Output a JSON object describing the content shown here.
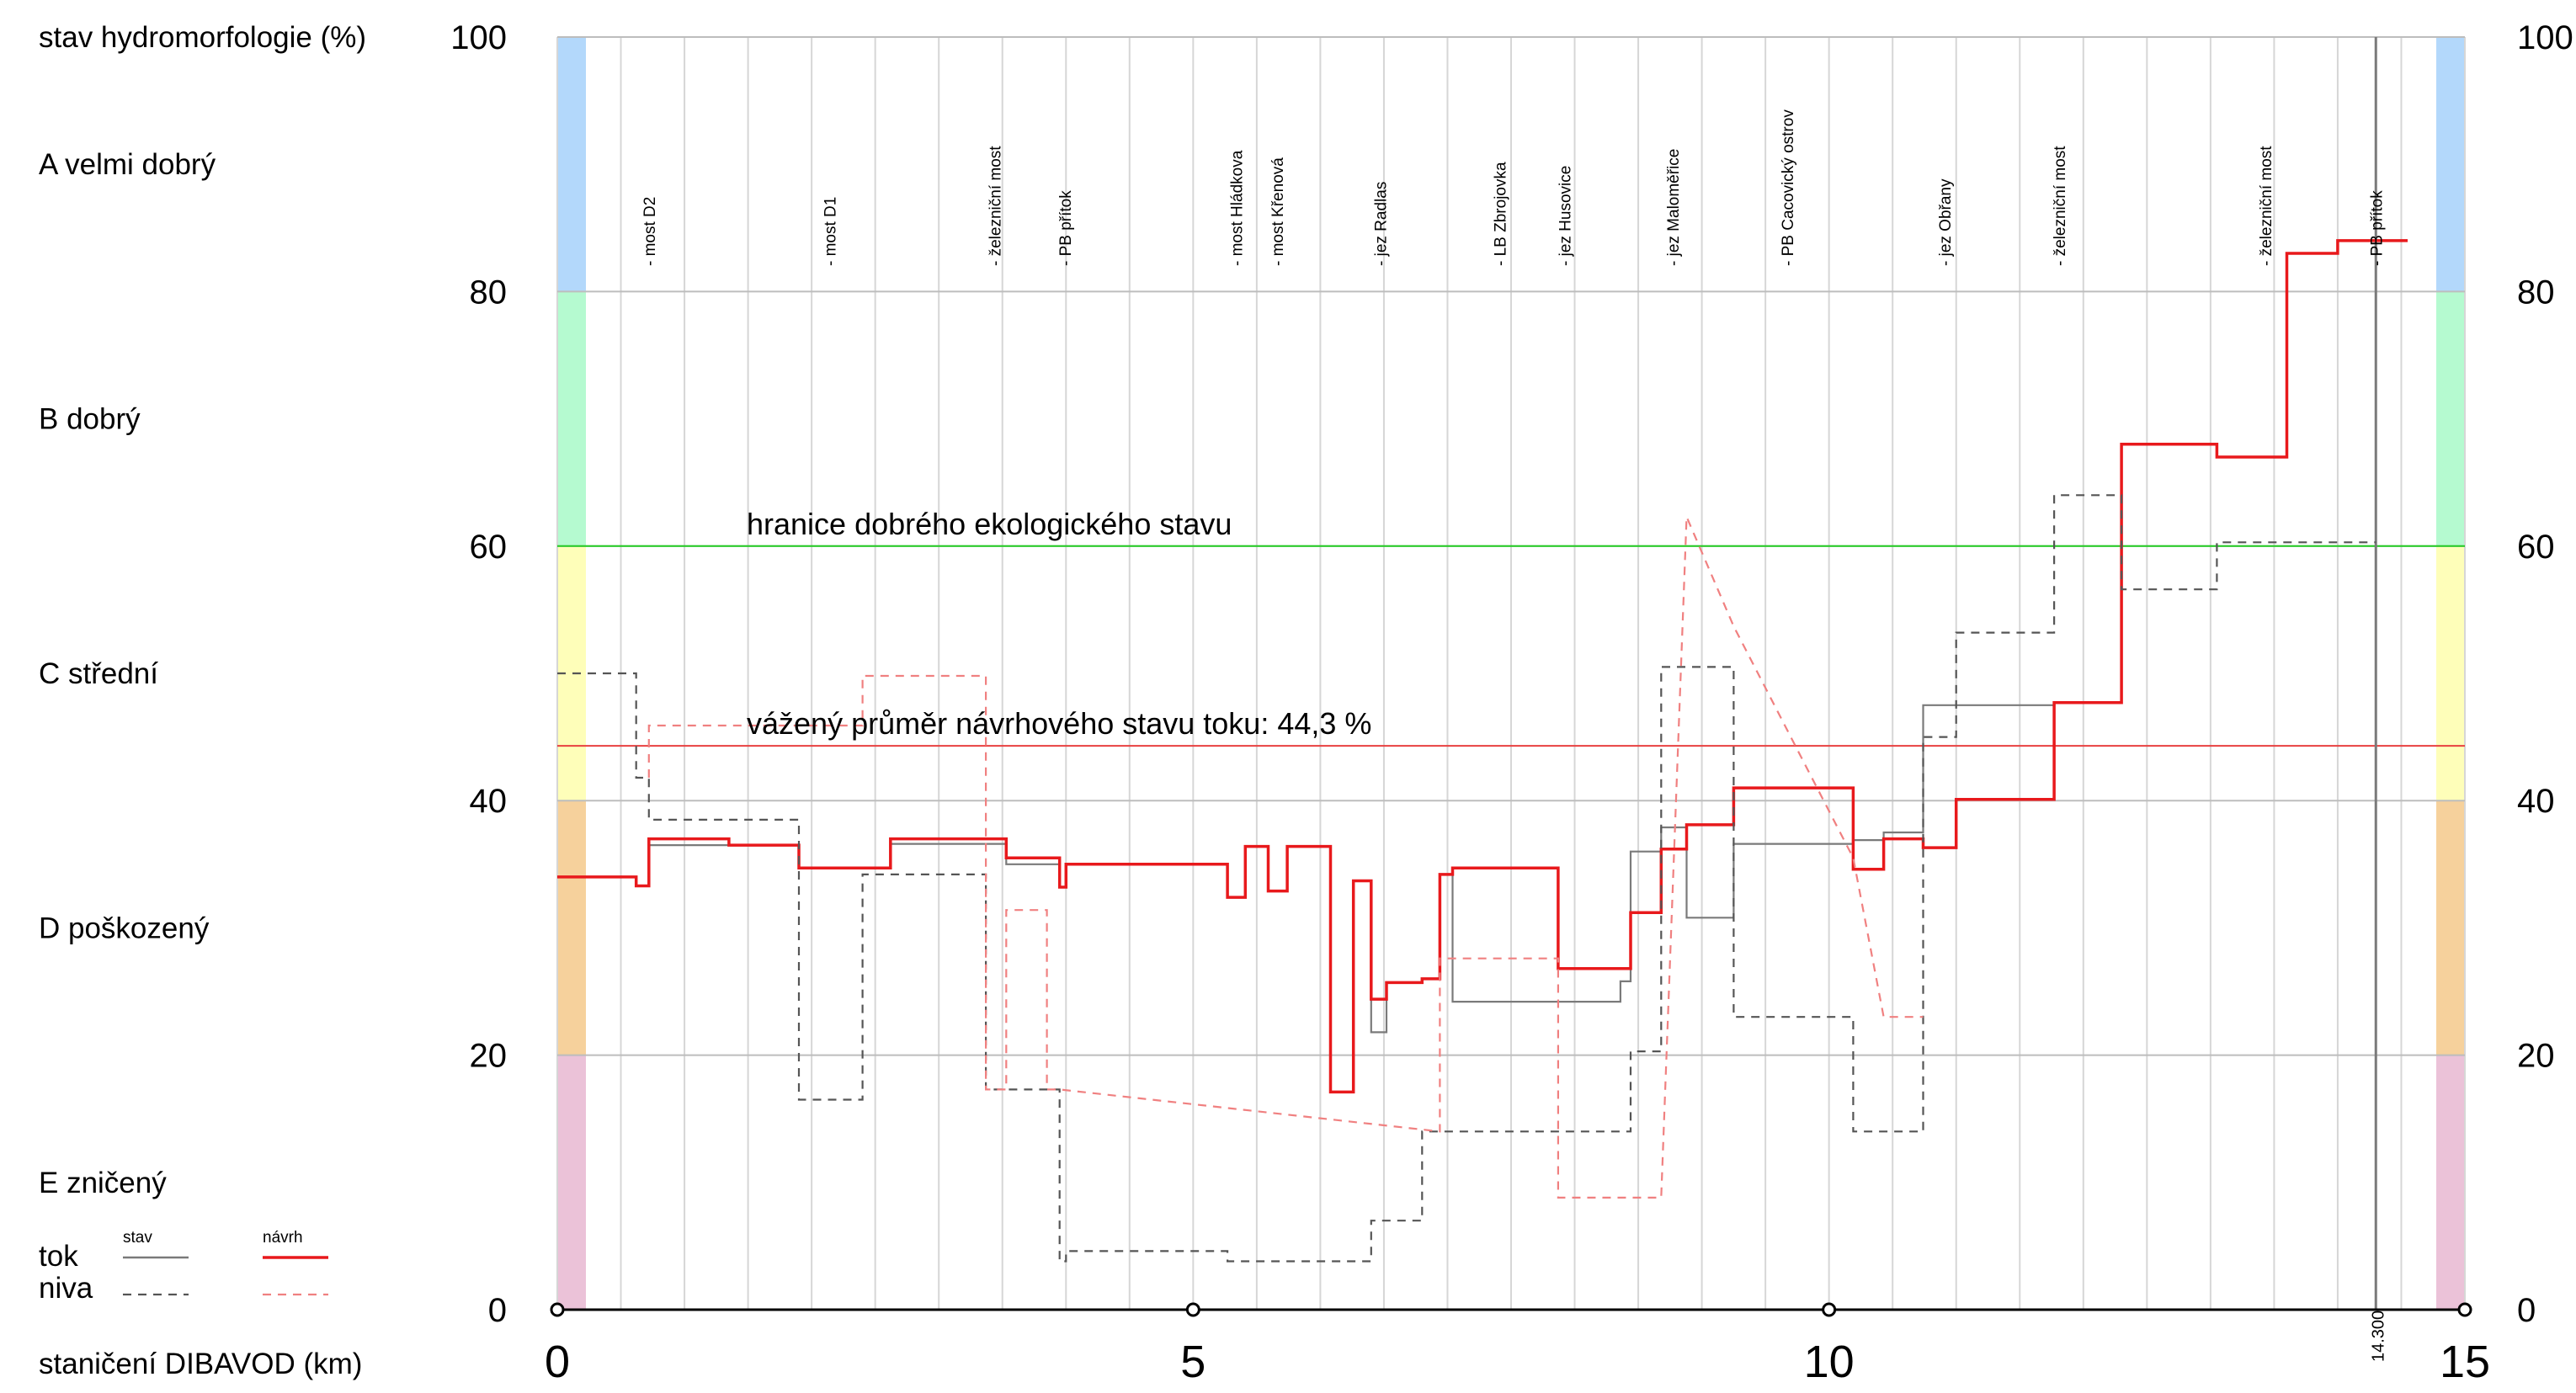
{
  "chart_data": {
    "type": "line",
    "ylabel": "stav hydromorfologie (%)",
    "xlabel": "staničení DIBAVOD (km)",
    "xlim": [
      0,
      15
    ],
    "ylim": [
      0,
      100
    ],
    "x_ticks": [
      "0",
      "5",
      "10",
      "15"
    ],
    "y_ticks": [
      "0",
      "20",
      "40",
      "60",
      "80",
      "100"
    ],
    "grid": true,
    "classes": [
      {
        "label": "A  velmi dobrý",
        "from": 80,
        "to": 100,
        "color": "#b3d8fb"
      },
      {
        "label": "B  dobrý",
        "from": 60,
        "to": 80,
        "color": "#b5fad0"
      },
      {
        "label": "C  střední",
        "from": 40,
        "to": 60,
        "color": "#fefeb9"
      },
      {
        "label": "D  poškozený",
        "from": 20,
        "to": 40,
        "color": "#f6d19c"
      },
      {
        "label": "E  zničený",
        "from": 0,
        "to": 20,
        "color": "#ebc2d8"
      }
    ],
    "reference_lines": [
      {
        "label": "hranice dobrého ekologického stavu",
        "y": 60,
        "color": "#22cc22"
      },
      {
        "label": "vážený průměr návrhového stavu toku: 44,3 %",
        "y": 44.3,
        "color": "#e84040"
      }
    ],
    "vertical_marker": {
      "x": 14.3,
      "label": "14.300"
    },
    "landmarks": [
      {
        "x": 0.72,
        "label": "- most D2"
      },
      {
        "x": 2.14,
        "label": "- most D1"
      },
      {
        "x": 3.44,
        "label": "- železniční most"
      },
      {
        "x": 3.99,
        "label": "- PB přítok"
      },
      {
        "x": 5.34,
        "label": "- most Hládkova"
      },
      {
        "x": 5.66,
        "label": "- most Křenová"
      },
      {
        "x": 6.47,
        "label": "- jez Radlas"
      },
      {
        "x": 7.41,
        "label": "- LB Zbrojovka"
      },
      {
        "x": 7.92,
        "label": "- jez Husovice"
      },
      {
        "x": 8.77,
        "label": "- jez Maloměřice"
      },
      {
        "x": 9.67,
        "label": "- PB Cacovický ostrov"
      },
      {
        "x": 10.91,
        "label": "- jez Obřany"
      },
      {
        "x": 11.81,
        "label": "- železniční most"
      },
      {
        "x": 13.43,
        "label": "- železniční most"
      },
      {
        "x": 14.3,
        "label": "- PB přítok"
      }
    ],
    "legend": {
      "row_labels": [
        "tok",
        "niva"
      ],
      "col_labels": [
        "stav",
        "návrh"
      ]
    },
    "series": [
      {
        "name": "tok stav",
        "color": "#7a7a7a",
        "dash": false,
        "x": [
          0,
          0.62,
          0.62,
          0.72,
          0.72,
          0.98,
          0.98,
          1.35,
          1.35,
          1.9,
          1.9,
          2.4,
          2.4,
          2.62,
          2.62,
          3.37,
          3.37,
          3.53,
          3.53,
          3.85,
          3.85,
          3.95,
          3.95,
          4.0,
          4.0,
          5.27,
          5.27,
          5.41,
          5.41,
          5.59,
          5.59,
          5.74,
          5.74,
          6.08,
          6.08,
          6.26,
          6.26,
          6.35,
          6.35,
          6.4,
          6.4,
          6.52,
          6.52,
          6.65,
          6.65,
          6.8,
          6.8,
          6.94,
          6.94,
          7.04,
          7.04,
          7.87,
          7.87,
          8.36,
          8.36,
          8.44,
          8.44,
          8.68,
          8.68,
          8.88,
          8.88,
          9.25,
          9.25,
          10.19,
          10.19,
          10.43,
          10.43,
          10.74,
          10.74,
          11.0,
          11.0,
          11.77
        ],
        "y": [
          34.0,
          34.0,
          33.3,
          33.3,
          36.5,
          36.5,
          36.5,
          36.5,
          36.5,
          36.5,
          34.7,
          34.7,
          34.7,
          34.7,
          36.6,
          36.6,
          36.6,
          36.6,
          35.0,
          35.0,
          35.0,
          35.0,
          33.2,
          33.2,
          35.0,
          35.0,
          32.4,
          32.4,
          36.4,
          36.4,
          32.9,
          32.9,
          36.4,
          36.4,
          17.1,
          17.1,
          33.7,
          33.7,
          33.7,
          33.7,
          21.8,
          21.8,
          25.7,
          25.7,
          25.7,
          25.7,
          26.0,
          26.0,
          34.2,
          34.2,
          24.2,
          24.2,
          24.2,
          24.2,
          25.8,
          25.8,
          36.0,
          36.0,
          37.9,
          37.9,
          30.8,
          30.8,
          36.6,
          36.6,
          36.9,
          36.9,
          37.5,
          37.5,
          47.5,
          47.5,
          47.5,
          47.5
        ]
      },
      {
        "name": "tok návrh",
        "color": "#e8191c",
        "dash": false,
        "x": [
          0,
          0.62,
          0.62,
          0.72,
          0.72,
          0.98,
          0.98,
          1.35,
          1.35,
          1.9,
          1.9,
          2.4,
          2.4,
          2.62,
          2.62,
          3.37,
          3.37,
          3.53,
          3.53,
          3.85,
          3.85,
          3.95,
          3.95,
          4.0,
          4.0,
          5.27,
          5.27,
          5.41,
          5.41,
          5.59,
          5.59,
          5.74,
          5.74,
          6.08,
          6.08,
          6.26,
          6.26,
          6.35,
          6.35,
          6.4,
          6.4,
          6.52,
          6.52,
          6.65,
          6.65,
          6.8,
          6.8,
          6.94,
          6.94,
          7.04,
          7.04,
          7.87,
          7.87,
          8.36,
          8.36,
          8.44,
          8.44,
          8.68,
          8.68,
          8.88,
          8.88,
          9.25,
          9.25,
          10.19,
          10.19,
          10.43,
          10.43,
          10.74,
          10.74,
          11.0,
          11.0,
          11.77,
          11.77,
          12.3,
          12.3,
          13.05,
          13.05,
          13.6,
          13.6,
          14.0,
          14.0,
          14.55
        ],
        "y": [
          34.0,
          34.0,
          33.3,
          33.3,
          37.0,
          37.0,
          37.0,
          37.0,
          36.5,
          36.5,
          34.7,
          34.7,
          34.7,
          34.7,
          37.0,
          37.0,
          37.0,
          37.0,
          35.5,
          35.5,
          35.5,
          35.5,
          33.2,
          33.2,
          35.0,
          35.0,
          32.4,
          32.4,
          36.4,
          36.4,
          32.9,
          32.9,
          36.4,
          36.4,
          17.1,
          17.1,
          33.7,
          33.7,
          33.7,
          33.7,
          24.4,
          24.4,
          25.7,
          25.7,
          25.7,
          25.7,
          26.0,
          26.0,
          34.2,
          34.2,
          34.7,
          34.7,
          26.8,
          26.8,
          26.8,
          26.8,
          31.2,
          31.2,
          36.2,
          36.2,
          38.1,
          38.1,
          41.0,
          41.0,
          34.6,
          34.6,
          37.0,
          37.0,
          36.3,
          36.3,
          40.1,
          40.1,
          47.7,
          47.7,
          68.0,
          68.0,
          67.0,
          67.0,
          83.0,
          83.0,
          84.0,
          84.0
        ]
      },
      {
        "name": "niva stav",
        "color": "#555555",
        "dash": true,
        "x": [
          0,
          0.62,
          0.62,
          0.72,
          0.72,
          1.9,
          1.9,
          2.4,
          2.4,
          3.37,
          3.37,
          3.85,
          3.85,
          3.95,
          3.95,
          4.0,
          4.0,
          5.27,
          5.27,
          5.41,
          5.41,
          6.4,
          6.4,
          6.8,
          6.8,
          7.04,
          7.04,
          7.87,
          7.87,
          8.36,
          8.36,
          8.44,
          8.44,
          8.68,
          8.68,
          8.88,
          8.88,
          9.25,
          9.25,
          10.19,
          10.19,
          10.74,
          10.74,
          11.0,
          11.0,
          11.77,
          11.77,
          12.3,
          12.3,
          13.05,
          13.05,
          13.6,
          13.6,
          14.3
        ],
        "y": [
          50.0,
          50.0,
          41.8,
          41.8,
          38.5,
          38.5,
          16.5,
          16.5,
          34.2,
          34.2,
          17.3,
          17.3,
          17.3,
          17.3,
          3.8,
          3.8,
          4.6,
          4.6,
          3.8,
          3.8,
          3.8,
          3.8,
          7.0,
          7.0,
          14.0,
          14.0,
          14.0,
          14.0,
          14.0,
          14.0,
          14.0,
          14.0,
          20.3,
          20.3,
          50.5,
          50.5,
          50.5,
          50.5,
          23.0,
          23.0,
          14.0,
          14.0,
          45.0,
          45.0,
          53.2,
          53.2,
          64.0,
          64.0,
          56.6,
          56.6,
          60.3,
          60.3,
          60.3,
          60.3
        ]
      },
      {
        "name": "niva návrh",
        "color": "#f08080",
        "dash": true,
        "x": [
          0.72,
          0.72,
          1.35,
          2.4,
          2.4,
          3.37,
          3.37,
          3.53,
          3.53,
          3.85,
          3.85,
          3.95,
          6.94,
          6.94,
          7.87,
          7.87,
          8.36,
          8.68,
          8.68,
          8.88,
          8.88,
          9.25,
          9.25,
          10.19,
          10.19,
          10.43,
          10.43,
          10.74
        ],
        "y": [
          41.8,
          45.9,
          45.9,
          45.9,
          49.8,
          49.8,
          17.3,
          17.3,
          31.4,
          31.4,
          17.3,
          17.3,
          14.0,
          27.6,
          27.6,
          8.8,
          8.8,
          8.8,
          8.8,
          62.3,
          62.3,
          53.7,
          53.7,
          35.5,
          35.5,
          23.0,
          23.0,
          23.0
        ]
      }
    ]
  }
}
